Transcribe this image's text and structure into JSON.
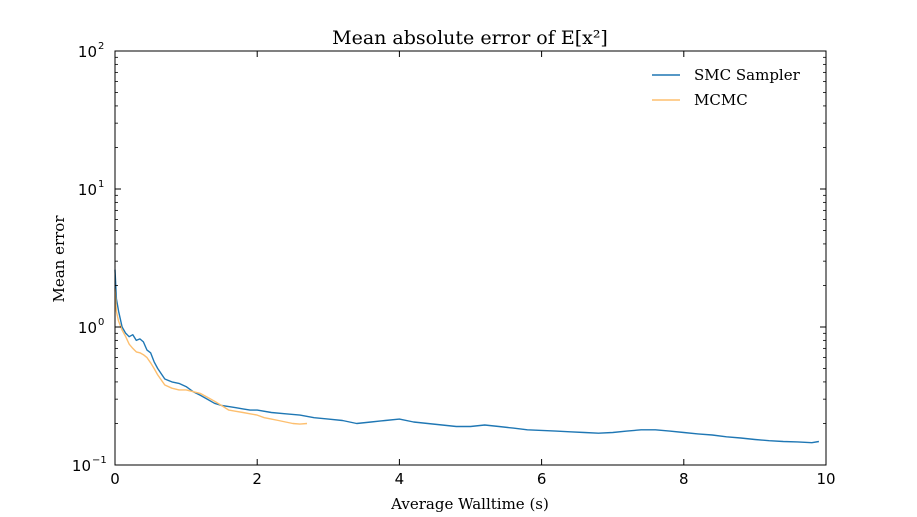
{
  "chart_data": {
    "type": "line",
    "title": "Mean absolute error of E[x²]",
    "xlabel": "Average Walltime (s)",
    "ylabel": "Mean error",
    "xscale": "linear",
    "yscale": "log",
    "xlim": [
      0,
      10
    ],
    "ylim": [
      0.1,
      100
    ],
    "x_ticks": [
      0,
      2,
      4,
      6,
      8,
      10
    ],
    "x_tick_labels": [
      "0",
      "2",
      "4",
      "6",
      "8",
      "10"
    ],
    "y_ticks": [
      0.1,
      1,
      10,
      100
    ],
    "y_tick_labels": [
      {
        "base": "10",
        "exp": "−1"
      },
      {
        "base": "10",
        "exp": "0"
      },
      {
        "base": "10",
        "exp": "1"
      },
      {
        "base": "10",
        "exp": "2"
      }
    ],
    "grid": false,
    "legend_position": "top-right",
    "series": [
      {
        "name": "SMC Sampler",
        "color": "#1f77b4",
        "x": [
          0.0,
          0.02,
          0.05,
          0.1,
          0.15,
          0.2,
          0.25,
          0.3,
          0.35,
          0.4,
          0.45,
          0.5,
          0.55,
          0.6,
          0.7,
          0.8,
          0.9,
          1.0,
          1.1,
          1.2,
          1.3,
          1.4,
          1.5,
          1.6,
          1.7,
          1.8,
          1.9,
          2.0,
          2.2,
          2.4,
          2.6,
          2.8,
          3.0,
          3.2,
          3.4,
          3.6,
          3.8,
          4.0,
          4.2,
          4.4,
          4.6,
          4.8,
          5.0,
          5.2,
          5.4,
          5.6,
          5.8,
          6.0,
          6.2,
          6.4,
          6.6,
          6.8,
          7.0,
          7.2,
          7.4,
          7.6,
          7.8,
          8.0,
          8.2,
          8.4,
          8.6,
          8.8,
          9.0,
          9.2,
          9.4,
          9.6,
          9.8,
          9.9
        ],
        "y": [
          2.6,
          1.6,
          1.3,
          1.0,
          0.9,
          0.85,
          0.88,
          0.8,
          0.82,
          0.78,
          0.68,
          0.65,
          0.56,
          0.5,
          0.42,
          0.4,
          0.39,
          0.37,
          0.34,
          0.32,
          0.3,
          0.28,
          0.27,
          0.265,
          0.26,
          0.255,
          0.25,
          0.25,
          0.24,
          0.235,
          0.23,
          0.22,
          0.215,
          0.21,
          0.2,
          0.205,
          0.21,
          0.215,
          0.205,
          0.2,
          0.195,
          0.19,
          0.19,
          0.195,
          0.19,
          0.185,
          0.18,
          0.178,
          0.176,
          0.174,
          0.172,
          0.17,
          0.172,
          0.176,
          0.18,
          0.18,
          0.176,
          0.172,
          0.168,
          0.165,
          0.16,
          0.157,
          0.153,
          0.15,
          0.148,
          0.147,
          0.145,
          0.148
        ]
      },
      {
        "name": "MCMC",
        "color": "#fdbf6f",
        "x": [
          0.0,
          0.02,
          0.05,
          0.1,
          0.15,
          0.2,
          0.25,
          0.3,
          0.35,
          0.4,
          0.45,
          0.5,
          0.55,
          0.6,
          0.7,
          0.8,
          0.9,
          1.0,
          1.1,
          1.2,
          1.3,
          1.4,
          1.5,
          1.6,
          1.7,
          1.8,
          1.9,
          2.0,
          2.1,
          2.2,
          2.3,
          2.4,
          2.5,
          2.6,
          2.7
        ],
        "y": [
          1.9,
          1.3,
          1.1,
          0.95,
          0.85,
          0.75,
          0.7,
          0.66,
          0.65,
          0.63,
          0.6,
          0.55,
          0.5,
          0.45,
          0.38,
          0.36,
          0.35,
          0.35,
          0.34,
          0.33,
          0.31,
          0.29,
          0.27,
          0.25,
          0.245,
          0.24,
          0.235,
          0.23,
          0.22,
          0.215,
          0.21,
          0.205,
          0.2,
          0.198,
          0.2
        ]
      }
    ]
  }
}
